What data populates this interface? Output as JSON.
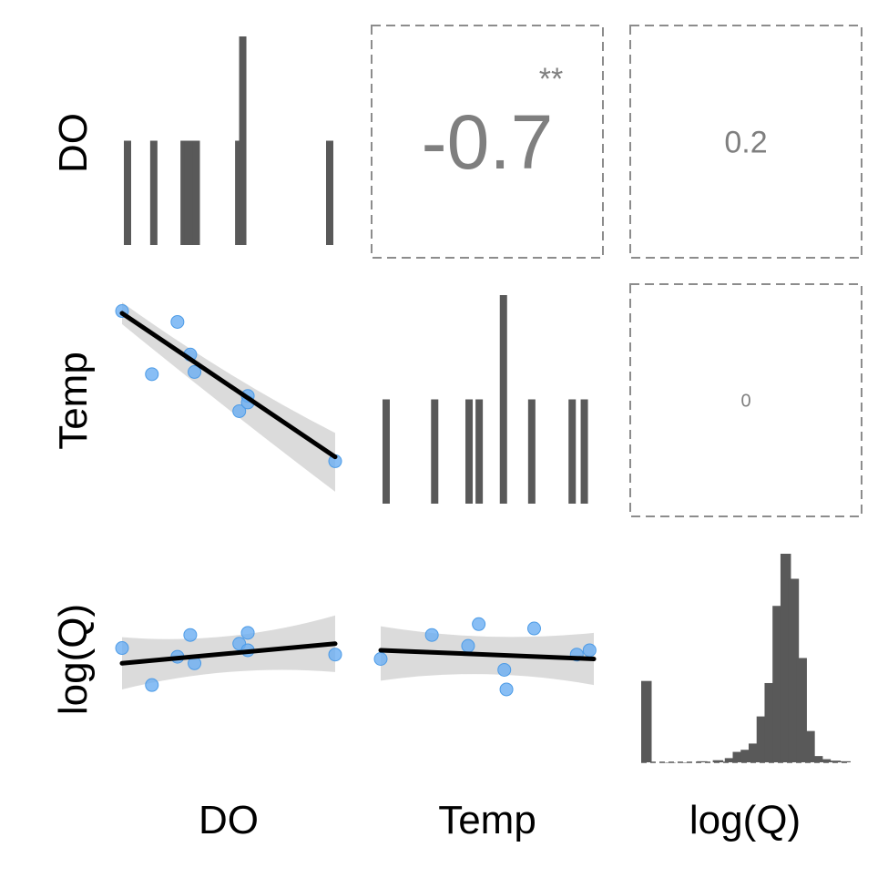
{
  "colors": {
    "bar": "#595959",
    "point": "#6aaef2",
    "point_stroke": "#4d9be6",
    "ribbon": "#d9d9d9",
    "fit_line": "#000000",
    "corr_text": "#7f7f7f",
    "panel_border": "#8c8c8c"
  },
  "chart_data": {
    "type": "pairs",
    "variables": [
      "DO",
      "Temp",
      "log(Q)"
    ],
    "row_labels": [
      "DO",
      "Temp",
      "log(Q)"
    ],
    "column_labels": [
      "DO",
      "Temp",
      "log(Q)"
    ],
    "correlations": [
      {
        "row": "DO",
        "col": "Temp",
        "value": "-0.7",
        "stars": "**",
        "emphasis": "large"
      },
      {
        "row": "DO",
        "col": "log(Q)",
        "value": "0.2",
        "stars": "",
        "emphasis": "medium"
      },
      {
        "row": "Temp",
        "col": "log(Q)",
        "value": "0",
        "stars": "",
        "emphasis": "small"
      }
    ],
    "histograms": {
      "DO": {
        "x": [
          0.0,
          0.13,
          0.28,
          0.3,
          0.32,
          0.34,
          0.55,
          0.57,
          1.0
        ],
        "heights": [
          1,
          1,
          1,
          1,
          1,
          1,
          1,
          2,
          1
        ],
        "ymax": 2
      },
      "Temp": {
        "x": [
          0.0,
          0.24,
          0.41,
          0.46,
          0.58,
          0.72,
          0.92,
          0.98
        ],
        "heights": [
          1,
          1,
          1,
          1,
          2,
          1,
          1,
          1
        ],
        "ymax": 2
      },
      "log(Q)": {
        "x": [
          0.0,
          0.12,
          0.2,
          0.28,
          0.36,
          0.42,
          0.46,
          0.5,
          0.54,
          0.58,
          0.62,
          0.66,
          0.7,
          0.74,
          0.78,
          0.82,
          0.86,
          0.9,
          0.95,
          1.0
        ],
        "heights": [
          0.39,
          0.0,
          0.0,
          0.005,
          0.01,
          0.02,
          0.05,
          0.06,
          0.09,
          0.22,
          0.38,
          0.75,
          1.0,
          0.88,
          0.5,
          0.15,
          0.03,
          0.015,
          0.008,
          0.005
        ],
        "ymax": 1.0
      }
    },
    "scatter": [
      {
        "row": "Temp",
        "col": "DO",
        "x": [
          0.0,
          0.14,
          0.26,
          0.32,
          0.34,
          0.55,
          0.59,
          0.59,
          1.0
        ],
        "y": [
          0.91,
          0.62,
          0.86,
          0.71,
          0.63,
          0.45,
          0.52,
          0.49,
          0.22
        ],
        "fit": [
          0.9,
          0.24
        ],
        "band": [
          [
            0.95,
            0.85
          ],
          [
            0.35,
            0.08
          ]
        ],
        "band_mid": [
          0.6,
          0.45
        ]
      },
      {
        "row": "log(Q)",
        "col": "DO",
        "x": [
          0.0,
          0.14,
          0.26,
          0.32,
          0.34,
          0.55,
          0.59,
          0.59,
          1.0
        ],
        "y": [
          0.55,
          0.38,
          0.51,
          0.61,
          0.48,
          0.57,
          0.62,
          0.54,
          0.52
        ],
        "fit": [
          0.48,
          0.57
        ],
        "band": [
          [
            0.6,
            0.36
          ],
          [
            0.7,
            0.44
          ]
        ],
        "band_mid": [
          0.56,
          0.48
        ]
      },
      {
        "row": "log(Q)",
        "col": "Temp",
        "x": [
          0.0,
          0.24,
          0.41,
          0.46,
          0.58,
          0.59,
          0.72,
          0.92,
          0.98
        ],
        "y": [
          0.5,
          0.61,
          0.56,
          0.66,
          0.45,
          0.36,
          0.64,
          0.52,
          0.54
        ],
        "fit": [
          0.54,
          0.5
        ],
        "band": [
          [
            0.65,
            0.4
          ],
          [
            0.62,
            0.38
          ]
        ],
        "band_mid": [
          0.57,
          0.47
        ]
      }
    ]
  }
}
